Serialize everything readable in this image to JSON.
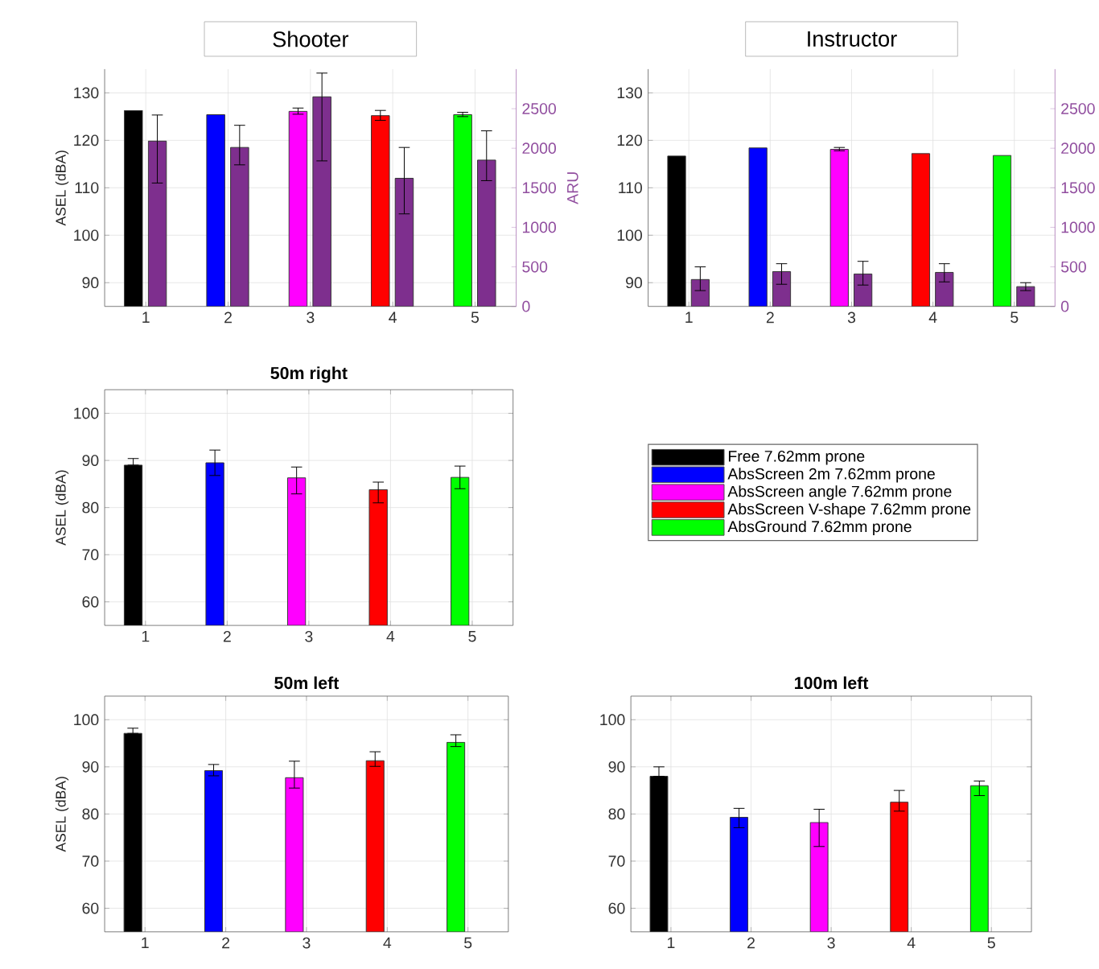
{
  "chart_data": [
    {
      "type": "bar",
      "title": "Shooter",
      "ylabel": "ASEL (dBA)",
      "y2label": "ARU",
      "categories": [
        "1",
        "2",
        "3",
        "4",
        "5"
      ],
      "ylim": [
        85,
        135
      ],
      "yticks": [
        90,
        100,
        110,
        120,
        130
      ],
      "y2lim": [
        0,
        3000
      ],
      "y2ticks": [
        0,
        500,
        1000,
        1500,
        2000,
        2500
      ],
      "grid": true,
      "series": [
        {
          "color": "#000000",
          "values": [
            126.3,
            null,
            null,
            null,
            null
          ]
        },
        {
          "color": "#0000ff",
          "values": [
            null,
            125.4,
            null,
            null,
            null
          ]
        },
        {
          "color": "#ff00ff",
          "values": [
            null,
            null,
            126.1,
            null,
            null
          ],
          "errors": [
            null,
            null,
            [
              125.5,
              126.8
            ],
            null,
            null
          ]
        },
        {
          "color": "#ff0000",
          "values": [
            null,
            null,
            null,
            125.2,
            null
          ],
          "errors": [
            null,
            null,
            null,
            [
              124.2,
              126.3
            ],
            null
          ]
        },
        {
          "color": "#00ff00",
          "values": [
            null,
            null,
            null,
            null,
            125.4
          ],
          "errors": [
            null,
            null,
            null,
            null,
            [
              125.0,
              125.9
            ]
          ]
        },
        {
          "color": "#7e2f8e",
          "axis": "y2",
          "values": [
            2090,
            2010,
            2650,
            1620,
            1850
          ],
          "errors": [
            [
              1560,
              2420
            ],
            [
              1790,
              2290
            ],
            [
              1840,
              2950
            ],
            [
              1170,
              2010
            ],
            [
              1590,
              2220
            ]
          ]
        }
      ]
    },
    {
      "type": "bar",
      "title": "Instructor",
      "categories": [
        "1",
        "2",
        "3",
        "4",
        "5"
      ],
      "ylim": [
        85,
        135
      ],
      "yticks": [
        90,
        100,
        110,
        120,
        130
      ],
      "y2lim": [
        0,
        3000
      ],
      "y2ticks": [
        0,
        500,
        1000,
        1500,
        2000,
        2500
      ],
      "grid": true,
      "series": [
        {
          "color": "#000000",
          "values": [
            116.7,
            null,
            null,
            null,
            null
          ]
        },
        {
          "color": "#0000ff",
          "values": [
            null,
            118.4,
            null,
            null,
            null
          ]
        },
        {
          "color": "#ff00ff",
          "values": [
            null,
            null,
            118.1,
            null,
            null
          ],
          "errors": [
            null,
            null,
            [
              117.8,
              118.5
            ],
            null,
            null
          ]
        },
        {
          "color": "#ff0000",
          "values": [
            null,
            null,
            null,
            117.2,
            null
          ]
        },
        {
          "color": "#00ff00",
          "values": [
            null,
            null,
            null,
            null,
            116.8
          ]
        },
        {
          "color": "#7e2f8e",
          "axis": "y2",
          "values": [
            340,
            440,
            410,
            430,
            250
          ],
          "errors": [
            [
              200,
              500
            ],
            [
              280,
              540
            ],
            [
              270,
              570
            ],
            [
              310,
              540
            ],
            [
              200,
              300
            ]
          ]
        }
      ]
    },
    {
      "type": "bar",
      "title": "**50m right**",
      "ylabel": "ASEL (dBA)",
      "categories": [
        "1",
        "2",
        "3",
        "4",
        "5"
      ],
      "ylim": [
        55,
        105
      ],
      "yticks": [
        60,
        70,
        80,
        90,
        100
      ],
      "grid": true,
      "legend": "right",
      "series": [
        {
          "name": "Free 7.62mm prone",
          "color": "#000000",
          "values": [
            89.0,
            null,
            null,
            null,
            null
          ],
          "errors": [
            [
              89.0,
              90.4
            ],
            null,
            null,
            null,
            null
          ]
        },
        {
          "name": "AbsScreen 2m 7.62mm prone",
          "color": "#0000ff",
          "values": [
            null,
            89.5,
            null,
            null,
            null
          ],
          "errors": [
            null,
            [
              86.8,
              92.2
            ],
            null,
            null,
            null
          ]
        },
        {
          "name": "AbsScreen angle 7.62mm prone",
          "color": "#ff00ff",
          "values": [
            null,
            null,
            86.3,
            null,
            null
          ],
          "errors": [
            null,
            null,
            [
              82.9,
              88.6
            ],
            null,
            null
          ]
        },
        {
          "name": "AbsScreen V-shape 7.62mm prone",
          "color": "#ff0000",
          "values": [
            null,
            null,
            null,
            83.8,
            null
          ],
          "errors": [
            null,
            null,
            null,
            [
              81.0,
              85.4
            ],
            null
          ]
        },
        {
          "name": "AbsGround 7.62mm prone",
          "color": "#00ff00",
          "values": [
            null,
            null,
            null,
            null,
            86.4
          ],
          "errors": [
            null,
            null,
            null,
            null,
            [
              84.0,
              88.8
            ]
          ]
        }
      ]
    },
    {
      "type": "bar",
      "title": "**50m left**",
      "ylabel": "ASEL (dBA)",
      "categories": [
        "1",
        "2",
        "3",
        "4",
        "5"
      ],
      "ylim": [
        55,
        105
      ],
      "yticks": [
        60,
        70,
        80,
        90,
        100
      ],
      "grid": true,
      "series": [
        {
          "color": "#000000",
          "values": [
            97.1,
            null,
            null,
            null,
            null
          ],
          "errors": [
            [
              97.1,
              98.2
            ],
            null,
            null,
            null,
            null
          ]
        },
        {
          "color": "#0000ff",
          "values": [
            null,
            89.2,
            null,
            null,
            null
          ],
          "errors": [
            null,
            [
              88.1,
              90.5
            ],
            null,
            null,
            null
          ]
        },
        {
          "color": "#ff00ff",
          "values": [
            null,
            null,
            87.7,
            null,
            null
          ],
          "errors": [
            null,
            null,
            [
              85.5,
              91.2
            ],
            null,
            null
          ]
        },
        {
          "color": "#ff0000",
          "values": [
            null,
            null,
            null,
            91.3,
            null
          ],
          "errors": [
            null,
            null,
            null,
            [
              90.1,
              93.2
            ],
            null
          ]
        },
        {
          "color": "#00ff00",
          "values": [
            null,
            null,
            null,
            null,
            95.2
          ],
          "errors": [
            null,
            null,
            null,
            null,
            [
              94.3,
              96.8
            ]
          ]
        }
      ]
    },
    {
      "type": "bar",
      "title": "**100m left**",
      "categories": [
        "1",
        "2",
        "3",
        "4",
        "5"
      ],
      "ylim": [
        55,
        105
      ],
      "yticks": [
        60,
        70,
        80,
        90,
        100
      ],
      "grid": true,
      "series": [
        {
          "color": "#000000",
          "values": [
            88.0,
            null,
            null,
            null,
            null
          ],
          "errors": [
            [
              88.0,
              90.0
            ],
            null,
            null,
            null,
            null
          ]
        },
        {
          "color": "#0000ff",
          "values": [
            null,
            79.3,
            null,
            null,
            null
          ],
          "errors": [
            null,
            [
              77.1,
              81.2
            ],
            null,
            null,
            null
          ]
        },
        {
          "color": "#ff00ff",
          "values": [
            null,
            null,
            78.2,
            null,
            null
          ],
          "errors": [
            null,
            null,
            [
              73.1,
              81.0
            ],
            null,
            null
          ]
        },
        {
          "color": "#ff0000",
          "values": [
            null,
            null,
            null,
            82.5,
            null
          ],
          "errors": [
            null,
            null,
            null,
            [
              80.6,
              85.0
            ],
            null
          ]
        },
        {
          "color": "#00ff00",
          "values": [
            null,
            null,
            null,
            null,
            86.0
          ],
          "errors": [
            null,
            null,
            null,
            null,
            [
              83.9,
              87.0
            ]
          ]
        }
      ]
    }
  ]
}
